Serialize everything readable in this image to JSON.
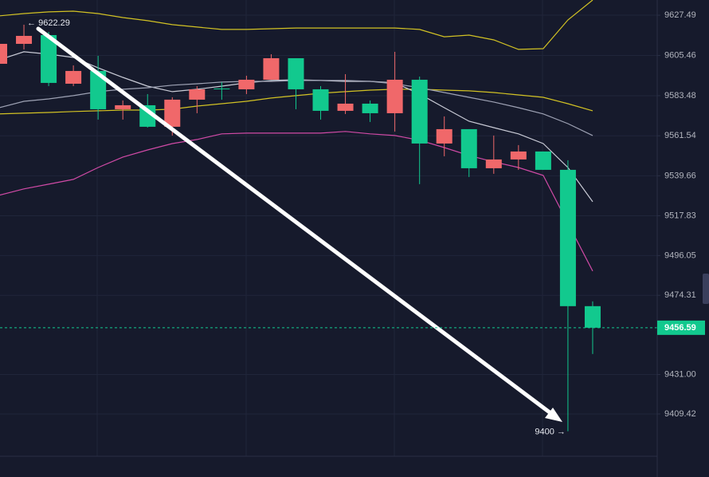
{
  "chart_data": {
    "type": "candlestick",
    "ylim": [
      9386.3,
      9635.8
    ],
    "yticks": [
      9627.49,
      9605.46,
      9583.48,
      9561.54,
      9539.66,
      9517.83,
      9496.05,
      9474.31,
      {
        "value": 9431,
        "label": "9431.00"
      },
      9409.42
    ],
    "grid": true,
    "up_color": "#f0686a",
    "down_color": "#12c98e",
    "candles": {
      "open": [
        9600.92,
        9611.82,
        9616.62,
        9590.02,
        9597.0,
        9576.07,
        9578.25,
        9566.48,
        9581.3,
        9587.4,
        9586.97,
        9592.2,
        9603.97,
        9586.97,
        9575.2,
        9579.12,
        9573.89,
        9592.2,
        9557.32,
        9565.17,
        9543.8,
        9548.6,
        9552.96,
        9542.93,
        9468.38
      ],
      "high": [
        9611.82,
        9622.29,
        9618.36,
        9600.05,
        9605.28,
        9580.86,
        9584.35,
        9582.61,
        9588.71,
        9590.89,
        9594.38,
        9606.15,
        9603.97,
        9588.71,
        9595.25,
        9580.86,
        9607.46,
        9593.94,
        9572.14,
        9565.17,
        9561.68,
        9556.45,
        9552.96,
        9548.16,
        9471.0
      ],
      "low": [
        9600.92,
        9608.77,
        9588.71,
        9588.71,
        9570.4,
        9570.4,
        9566.04,
        9561.68,
        9573.89,
        9581.3,
        9584.35,
        9592.2,
        9576.07,
        9570.4,
        9573.45,
        9569.09,
        9563.86,
        9535.08,
        9550.34,
        9539.01,
        9540.75,
        9542.93,
        9542.93,
        9400,
        9442.22
      ],
      "close": [
        9611.82,
        9616.18,
        9590.46,
        9597.0,
        9576.07,
        9578.25,
        9566.48,
        9581.3,
        9586.97,
        9586.97,
        9592.2,
        9603.97,
        9586.97,
        9575.2,
        9579.12,
        9573.89,
        9592.2,
        9557.32,
        9565.17,
        9543.8,
        9548.6,
        9552.96,
        9542.93,
        9468.38,
        9456.59
      ]
    },
    "lines": [
      {
        "color": "#d2c224",
        "values": [
          9627.1,
          9628.4,
          9629.3,
          9629.7,
          9628.4,
          9626.2,
          9624.5,
          9622.3,
          9621.0,
          9619.7,
          9619.7,
          9620.1,
          9620.5,
          9620.5,
          9620.5,
          9620.5,
          9620.5,
          9619.7,
          9615.7,
          9616.6,
          9614.0,
          9608.8,
          9609.2,
          9624.9,
          9635.8
        ]
      },
      {
        "color": "#d2c224",
        "values": [
          9573.5,
          9573.9,
          9574.3,
          9574.8,
          9575.2,
          9575.6,
          9575.6,
          9576.1,
          9577.8,
          9579.1,
          9580.4,
          9582.2,
          9583.5,
          9584.8,
          9585.7,
          9586.5,
          9587.0,
          9587.0,
          9586.5,
          9586.1,
          9585.2,
          9583.9,
          9582.6,
          9579.1,
          9575.2
        ]
      },
      {
        "color": "#c9cbd6",
        "values": [
          9603.1,
          9607.5,
          9606.2,
          9604.4,
          9598.7,
          9593.5,
          9588.7,
          9585.7,
          9587.0,
          9588.7,
          9590.5,
          9591.8,
          9592.2,
          9591.8,
          9591.3,
          9591.3,
          9590.5,
          9584.4,
          9576.9,
          9569.5,
          9566.0,
          9562.6,
          9557.3,
          9544.2,
          9525.5
        ]
      },
      {
        "color": "#9ea2b4",
        "values": [
          9576.9,
          9580.4,
          9581.7,
          9583.5,
          9585.7,
          9587.0,
          9587.8,
          9589.2,
          9590.0,
          9590.9,
          9591.3,
          9591.3,
          9591.8,
          9591.8,
          9591.8,
          9591.3,
          9590.0,
          9587.8,
          9585.2,
          9582.6,
          9580.0,
          9576.9,
          9573.5,
          9568.2,
          9561.7
        ]
      },
      {
        "color": "#d04aa6",
        "values": [
          9529.0,
          9532.5,
          9535.1,
          9537.7,
          9544.2,
          9549.9,
          9553.8,
          9557.3,
          9559.5,
          9562.6,
          9563.0,
          9563.0,
          9563.0,
          9563.0,
          9563.9,
          9562.6,
          9561.7,
          9559.1,
          9555.1,
          9550.8,
          9547.3,
          9544.2,
          9539.9,
          9513.7,
          9487.6
        ]
      }
    ],
    "high_label": "← 9622.29",
    "low_label": "9400 →",
    "last_price": 9456.59,
    "last_price_color": "#12c98e"
  }
}
